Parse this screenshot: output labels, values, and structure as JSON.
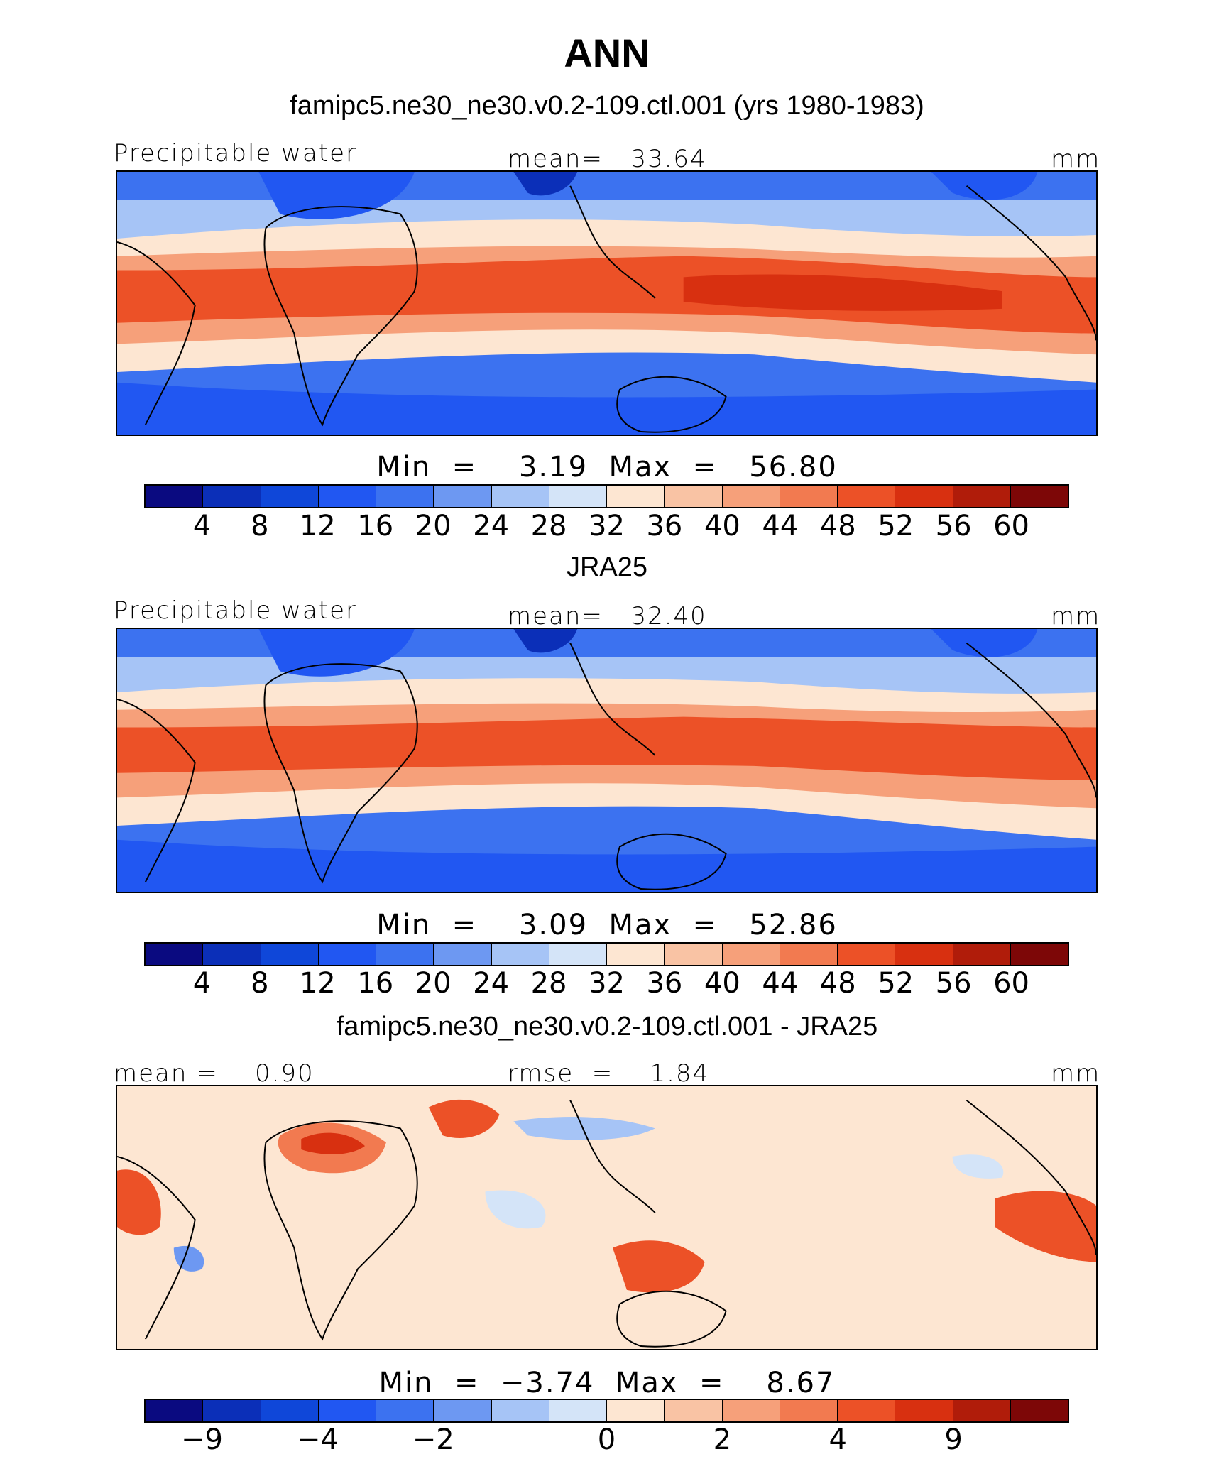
{
  "page": {
    "title": "ANN"
  },
  "colorbar": {
    "colors": [
      "#0a0a80",
      "#0b2fb8",
      "#0f47d9",
      "#2157f2",
      "#3c72f0",
      "#6d98f2",
      "#a6c4f6",
      "#d4e4f8",
      "#fde6d2",
      "#f9c3a4",
      "#f6a07a",
      "#f27a50",
      "#ec5127",
      "#d83010",
      "#b01c0a",
      "#7d0707"
    ],
    "tick_labels": [
      "4",
      "8",
      "12",
      "16",
      "20",
      "24",
      "28",
      "32",
      "36",
      "40",
      "44",
      "48",
      "52",
      "56",
      "60"
    ]
  },
  "diff_colorbar": {
    "tick_labels": [
      "−9",
      "−4",
      "−2",
      "0",
      "2",
      "4",
      "9"
    ],
    "tick_boundaries": [
      1,
      3,
      5,
      8,
      10,
      12,
      14
    ]
  },
  "panels": [
    {
      "title": "famipc5.ne30_ne30.v0.2-109.ctl.001 (yrs 1980-1983)",
      "left_label": "Precipitable water",
      "center_label": "mean=   33.64",
      "right_label": "mm",
      "min_max": "Min  =    3.19  Max  =   56.80"
    },
    {
      "title": "JRA25",
      "left_label": "Precipitable water",
      "center_label": "mean=   32.40",
      "right_label": "mm",
      "min_max": "Min  =    3.09  Max  =   52.86"
    },
    {
      "title": "famipc5.ne30_ne30.v0.2-109.ctl.001 - JRA25",
      "left_label": "mean =    0.90",
      "center_label": "rmse  =    1.84",
      "right_label": "mm",
      "min_max": "Min  =  −3.74  Max  =    8.67"
    }
  ],
  "chart_data": [
    {
      "type": "heatmap",
      "title": "famipc5.ne30_ne30.v0.2-109.ctl.001 (yrs 1980-1983)",
      "variable": "Precipitable water",
      "units": "mm",
      "mean": 33.64,
      "min": 3.19,
      "max": 56.8,
      "contour_levels": [
        4,
        8,
        12,
        16,
        20,
        24,
        28,
        32,
        36,
        40,
        44,
        48,
        52,
        56,
        60
      ]
    },
    {
      "type": "heatmap",
      "title": "JRA25",
      "variable": "Precipitable water",
      "units": "mm",
      "mean": 32.4,
      "min": 3.09,
      "max": 52.86,
      "contour_levels": [
        4,
        8,
        12,
        16,
        20,
        24,
        28,
        32,
        36,
        40,
        44,
        48,
        52,
        56,
        60
      ]
    },
    {
      "type": "heatmap",
      "title": "famipc5.ne30_ne30.v0.2-109.ctl.001 - JRA25",
      "units": "mm",
      "mean": 0.9,
      "rmse": 1.84,
      "min": -3.74,
      "max": 8.67,
      "contour_levels": [
        -9,
        -4,
        -2,
        0,
        2,
        4,
        9
      ]
    }
  ]
}
